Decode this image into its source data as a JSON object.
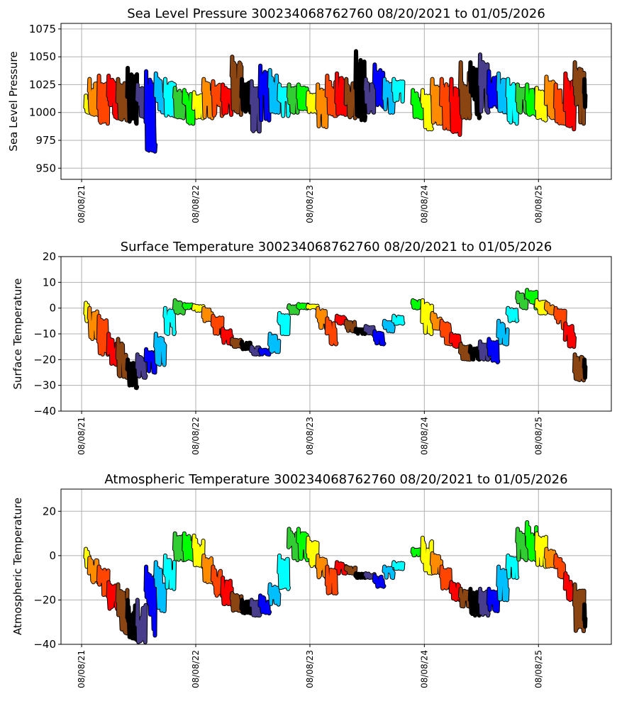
{
  "month_colors": [
    "#ffff00",
    "#ff8c00",
    "#ff4500",
    "#ff0000",
    "#8b4513",
    "#000000",
    "#483d8b",
    "#0000ff",
    "#00bfff",
    "#00ffff",
    "#32cd32",
    "#00ff00"
  ],
  "x_ticks": [
    "08/08/21",
    "08/08/22",
    "08/08/23",
    "08/08/24",
    "08/08/25"
  ],
  "x_tick_dates": [
    "2021-08-08",
    "2022-08-08",
    "2023-08-08",
    "2024-08-08",
    "2025-08-08"
  ],
  "xlim": [
    "2021-06-03",
    "2026-03-29"
  ],
  "data_start": "2021-08-20",
  "data_end": "2026-01-05",
  "months": [
    "2021-08",
    "2021-09",
    "2021-10",
    "2021-11",
    "2021-12",
    "2022-01",
    "2022-02",
    "2022-03",
    "2022-04",
    "2022-05",
    "2022-06",
    "2022-07",
    "2022-08",
    "2022-09",
    "2022-10",
    "2022-11",
    "2022-12",
    "2023-01",
    "2023-02",
    "2023-03",
    "2023-04",
    "2023-05",
    "2023-06",
    "2023-07",
    "2023-08",
    "2023-09",
    "2023-10",
    "2023-11",
    "2023-12",
    "2024-01",
    "2024-02",
    "2024-03",
    "2024-04",
    "2024-05",
    "2024-06",
    "2024-07",
    "2024-08",
    "2024-09",
    "2024-10",
    "2024-11",
    "2024-12",
    "2025-01",
    "2025-02",
    "2025-03",
    "2025-04",
    "2025-05",
    "2025-06",
    "2025-07",
    "2025-08",
    "2025-09",
    "2025-10",
    "2025-11",
    "2025-12",
    "2026-01"
  ],
  "chart_data": [
    {
      "type": "scatter",
      "title": "Sea Level Pressure 300234068762760  08/20/2021 to 01/05/2026",
      "ylabel": "Sea Level Pressure",
      "xlabel": "",
      "ylim": [
        940,
        1080
      ],
      "y_ticks": [
        "950",
        "975",
        "1000",
        "1025",
        "1050",
        "1075"
      ],
      "grid": true,
      "monthly_min": [
        1000,
        998,
        990,
        995,
        993,
        990,
        995,
        965,
        1000,
        997,
        995,
        990,
        995,
        995,
        997,
        998,
        998,
        1000,
        983,
        993,
        1000,
        997,
        1000,
        1003,
        1000,
        987,
        997,
        998,
        995,
        993,
        1000,
        1005,
        1000,
        1010,
        null,
        995,
        985,
        990,
        985,
        980,
        995,
        995,
        1000,
        1005,
        1000,
        990,
        1000,
        998,
        993,
        995,
        990,
        985,
        990,
        1005
      ],
      "monthly_max": [
        1015,
        1030,
        1033,
        1033,
        1030,
        1040,
        1025,
        1037,
        1035,
        1030,
        1022,
        1020,
        1018,
        1030,
        1028,
        1025,
        1050,
        1030,
        1028,
        1042,
        1038,
        1025,
        1025,
        1025,
        1018,
        1025,
        1033,
        1035,
        1030,
        1055,
        1030,
        1043,
        1030,
        1030,
        null,
        1020,
        1020,
        1030,
        1030,
        1030,
        1045,
        1045,
        1052,
        1037,
        1035,
        1030,
        1025,
        1025,
        1022,
        1032,
        1025,
        1035,
        1045,
        1030
      ]
    },
    {
      "type": "scatter",
      "title": "Surface Temperature 300234068762760  08/20/2021 to 01/05/2026",
      "ylabel": "Surface Temperature",
      "xlabel": "",
      "ylim": [
        -40,
        20
      ],
      "y_ticks": [
        "−40",
        "−30",
        "−20",
        "−10",
        "0",
        "10",
        "20"
      ],
      "grid": true,
      "monthly_min": [
        -5,
        -12,
        -18,
        -22,
        -27,
        -31,
        -27,
        -25,
        -22,
        -10,
        -2,
        0,
        -1,
        -5,
        -10,
        -14,
        -15,
        -16,
        -18,
        -18,
        -17,
        -10,
        -2,
        0,
        0,
        -8,
        -14,
        -6,
        -9,
        -10,
        -10,
        -14,
        -9,
        -6,
        null,
        0,
        -10,
        -8,
        -14,
        -15,
        -20,
        -20,
        -20,
        -21,
        -14,
        -5,
        0,
        0,
        -2,
        -2,
        -8,
        -15,
        -28,
        -27
      ],
      "monthly_max": [
        2,
        0,
        -3,
        -10,
        -12,
        -20,
        -18,
        -16,
        -10,
        0,
        3,
        1.5,
        1,
        0,
        -3,
        -8,
        -12,
        -13,
        -15,
        -16,
        -10,
        -2,
        1,
        1.5,
        1,
        0,
        -4,
        -3,
        -5,
        -8,
        -7,
        -9,
        -5,
        -3,
        null,
        3,
        3,
        -2,
        -5,
        -10,
        -14,
        -15,
        -13,
        -12,
        -5,
        0,
        6,
        7,
        3,
        2,
        0,
        -6,
        -18,
        -20
      ]
    },
    {
      "type": "scatter",
      "title": "Atmospheric Temperature 300234068762760  08/20/2021 to 01/05/2026",
      "ylabel": "Atmospheric Temperature",
      "xlabel": "",
      "ylim": [
        -40,
        30
      ],
      "y_ticks": [
        "−40",
        "−20",
        "0",
        "20"
      ],
      "grid": true,
      "monthly_min": [
        -5,
        -12,
        -18,
        -24,
        -35,
        -38,
        -39,
        -36,
        -25,
        -15,
        -2,
        -2,
        -5,
        -12,
        -18,
        -22,
        -25,
        -26,
        -27,
        -26,
        -22,
        -15,
        -2,
        -2,
        -5,
        -10,
        -17,
        -8,
        -8,
        -10,
        -10,
        -14,
        -10,
        -6,
        null,
        0,
        -8,
        -8,
        -15,
        -20,
        -23,
        -27,
        -27,
        -25,
        -20,
        -10,
        -2,
        -2,
        -5,
        -5,
        -10,
        -20,
        -34,
        -32
      ],
      "monthly_max": [
        3,
        -1,
        -5,
        -12,
        -13,
        -20,
        -20,
        -5,
        -3,
        0,
        10,
        10,
        9,
        0,
        -5,
        -10,
        -17,
        -20,
        -20,
        -18,
        -13,
        0,
        12,
        12,
        8,
        0,
        -5,
        -3,
        -5,
        -8,
        -8,
        -9,
        -5,
        -3,
        null,
        3,
        8,
        1,
        -5,
        -12,
        -15,
        -15,
        -15,
        -15,
        -5,
        0,
        12,
        15,
        10,
        3,
        0,
        -8,
        -13,
        -22
      ]
    }
  ]
}
